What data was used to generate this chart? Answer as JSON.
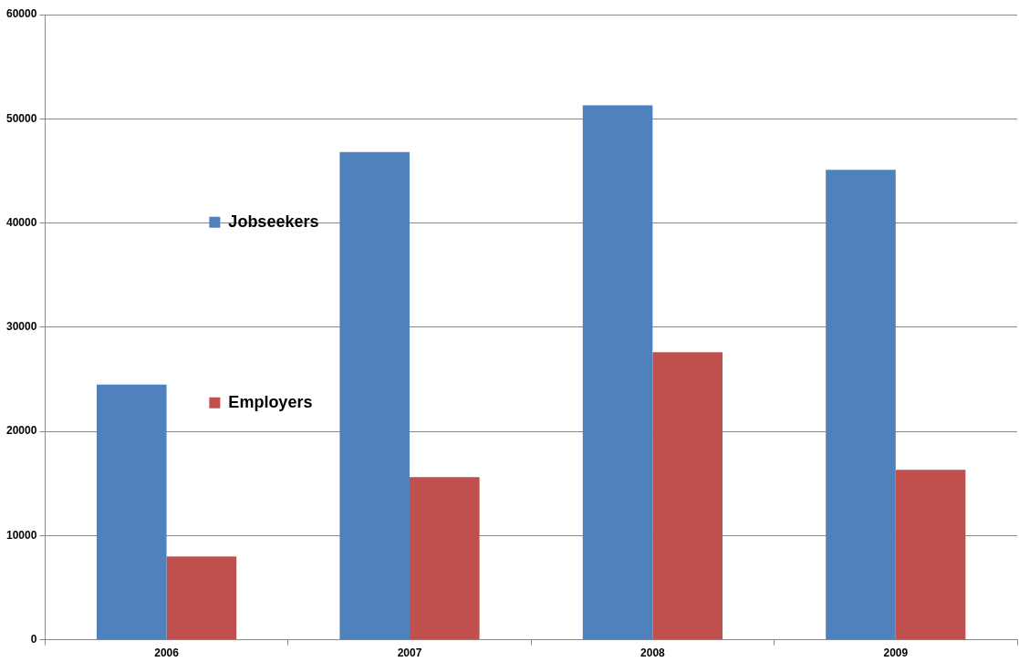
{
  "chart_data": {
    "type": "bar",
    "categories": [
      "2006",
      "2007",
      "2008",
      "2009"
    ],
    "series": [
      {
        "name": "Jobseekers",
        "color": "#4f81bd",
        "values": [
          24500,
          46800,
          51300,
          45100
        ]
      },
      {
        "name": "Employers",
        "color": "#c0504d",
        "values": [
          8000,
          15600,
          27600,
          16300
        ]
      }
    ],
    "ylim": [
      0,
      60000
    ],
    "yticks": [
      0,
      10000,
      20000,
      30000,
      40000,
      50000,
      60000
    ],
    "grid": "y",
    "legend": "top"
  }
}
